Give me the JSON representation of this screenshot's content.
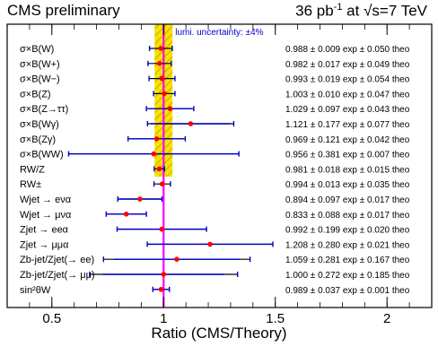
{
  "header": {
    "left": "CMS preliminary",
    "right_lumi": "36 pb",
    "right_lumi_exp": "-1",
    "right_energy": " at √s=7 TeV"
  },
  "chart_data": {
    "type": "scatter",
    "title": "",
    "xlabel": "Ratio (CMS/Theory)",
    "xlim": [
      0.3,
      2.2
    ],
    "xticks": [
      0.5,
      1,
      1.5,
      2
    ],
    "xtick_labels": [
      "0.5",
      "1",
      "1.5",
      "2"
    ],
    "band_label": "lumi. uncertainty: ±4%",
    "lumi_uncertainty": 0.04,
    "theory_uncertainty_band": 0.04,
    "colors": {
      "lumi_band": "#f5e400",
      "lumi_hatch": "#d4a800",
      "unity_line": "#ff00ff",
      "error_bars": "#0000cc",
      "points": "#ff0000",
      "band_label": "#0000cc"
    },
    "points": [
      {
        "label": "σ×B(W)",
        "value": 0.988,
        "stat": 0.009,
        "total": 0.051,
        "text_value": "0.988 ± 0.009",
        "text_exp": "± 0.050",
        "text_theo": ""
      },
      {
        "label": "σ×B(W+)",
        "value": 0.982,
        "stat": 0.017,
        "total": 0.052,
        "text_value": "0.982 ± 0.017",
        "text_exp": "± 0.049",
        "text_theo": ""
      },
      {
        "label": "σ×B(W−)",
        "value": 0.993,
        "stat": 0.019,
        "total": 0.058,
        "text_value": "0.993 ± 0.019",
        "text_exp": "± 0.054",
        "text_theo": ""
      },
      {
        "label": "σ×B(Z)",
        "value": 1.003,
        "stat": 0.01,
        "total": 0.048,
        "text_value": "1.003 ± 0.010",
        "text_exp": "± 0.047",
        "text_theo": ""
      },
      {
        "label": "σ×B(Z→ττ)",
        "value": 1.029,
        "stat": 0.097,
        "total": 0.106,
        "text_value": "1.029 ± 0.097",
        "text_exp": "± 0.043",
        "text_theo": ""
      },
      {
        "label": "σ×B(Wγ)",
        "value": 1.121,
        "stat": 0.177,
        "total": 0.193,
        "text_value": "1.121 ± 0.177",
        "text_exp": "± 0.077",
        "text_theo": ""
      },
      {
        "label": "σ×B(Zγ)",
        "value": 0.969,
        "stat": 0.121,
        "total": 0.128,
        "text_value": "0.969 ± 0.121",
        "text_exp": "± 0.042",
        "text_theo": ""
      },
      {
        "label": "σ×B(WW)",
        "value": 0.956,
        "stat": 0.381,
        "total": 0.381,
        "text_value": "0.956 ± 0.381",
        "text_exp": "± 0.007",
        "text_theo": ""
      },
      {
        "label": "RW/Z",
        "value": 0.981,
        "stat": 0.018,
        "total": 0.023,
        "text_value": "0.981 ± 0.018",
        "text_exp": "± 0.015",
        "text_theo": ""
      },
      {
        "label": "RW±",
        "value": 0.994,
        "stat": 0.013,
        "total": 0.037,
        "text_value": "0.994 ± 0.013",
        "text_exp": "± 0.035",
        "text_theo": ""
      },
      {
        "label": "Wjet → eνα",
        "value": 0.894,
        "stat": 0.097,
        "total": 0.099,
        "text_value": "0.894 ± 0.097",
        "text_exp": "± 0.017",
        "text_theo": ""
      },
      {
        "label": "Wjet → μνα",
        "value": 0.833,
        "stat": 0.088,
        "total": 0.09,
        "text_value": "0.833 ± 0.088",
        "text_exp": "± 0.017",
        "text_theo": ""
      },
      {
        "label": "Zjet → eeα",
        "value": 0.992,
        "stat": 0.199,
        "total": 0.2,
        "text_value": "0.992 ± 0.199",
        "text_exp": "± 0.020",
        "text_theo": ""
      },
      {
        "label": "Zjet → μμα",
        "value": 1.208,
        "stat": 0.28,
        "total": 0.281,
        "text_value": "1.208 ± 0.280",
        "text_exp": "± 0.021",
        "text_theo": ""
      },
      {
        "label": "Zb-jet/Zjet(→ ee)",
        "value": 1.059,
        "stat": 0.281,
        "total": 0.328,
        "text_value": "1.059 ± 0.281",
        "text_exp": "± 0.167",
        "text_theo": ""
      },
      {
        "label": "Zb-jet/Zjet(→ μμ)",
        "value": 1.0,
        "stat": 0.272,
        "total": 0.331,
        "text_value": "1.000 ± 0.272",
        "text_exp": "± 0.185",
        "text_theo": ""
      },
      {
        "label": "sin²θW",
        "value": 0.989,
        "stat": 0.037,
        "total": 0.037,
        "text_value": "0.989 ± 0.037",
        "text_exp": "± 0.001",
        "text_theo": ""
      }
    ],
    "suffix_exp": "exp",
    "suffix_theo": "theo"
  }
}
